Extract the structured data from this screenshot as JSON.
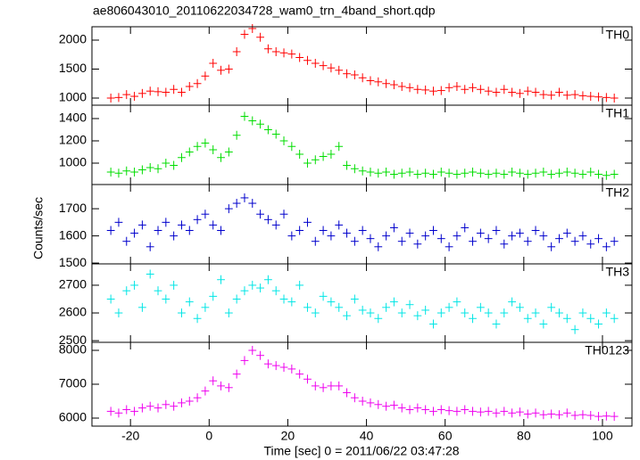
{
  "chart_data": {
    "type": "line",
    "title": "ae806043010_20110622034728_wam0_trn_4band_short.qdp",
    "xlabel": "Time [sec] 0 = 2011/06/22 03:47:28",
    "ylabel": "Counts/sec",
    "xlim": [
      -29.8,
      107.5
    ],
    "xticks": [
      -20,
      0,
      20,
      40,
      60,
      80,
      100
    ],
    "x": [
      -25,
      -23,
      -21,
      -19,
      -17,
      -15,
      -13,
      -11,
      -9,
      -7,
      -5,
      -3,
      -1,
      1,
      3,
      5,
      7,
      9,
      11,
      13,
      15,
      17,
      19,
      21,
      23,
      25,
      27,
      29,
      31,
      33,
      35,
      37,
      39,
      41,
      43,
      45,
      47,
      49,
      51,
      53,
      55,
      57,
      59,
      61,
      63,
      65,
      67,
      69,
      71,
      73,
      75,
      77,
      79,
      81,
      83,
      85,
      87,
      89,
      91,
      93,
      95,
      97,
      99,
      101,
      103
    ],
    "series": [
      {
        "name": "TH0",
        "color": "#ff0000",
        "ylim": [
          877,
          2231
        ],
        "yticks": [
          1000,
          1500,
          2000
        ],
        "values": [
          1000,
          1010,
          1060,
          1030,
          1080,
          1120,
          1110,
          1100,
          1150,
          1100,
          1200,
          1250,
          1380,
          1600,
          1480,
          1500,
          1800,
          2100,
          2200,
          2050,
          1850,
          1800,
          1780,
          1760,
          1700,
          1650,
          1600,
          1560,
          1520,
          1480,
          1420,
          1400,
          1350,
          1300,
          1280,
          1250,
          1230,
          1200,
          1180,
          1150,
          1140,
          1120,
          1130,
          1180,
          1200,
          1150,
          1180,
          1150,
          1120,
          1100,
          1150,
          1100,
          1080,
          1120,
          1100,
          1060,
          1050,
          1100,
          1050,
          1060,
          1040,
          1030,
          1020,
          1010,
          1000
        ]
      },
      {
        "name": "TH1",
        "color": "#00dd00",
        "ylim": [
          808,
          1520
        ],
        "yticks": [
          1000,
          1200,
          1400
        ],
        "values": [
          920,
          910,
          930,
          920,
          940,
          960,
          950,
          1000,
          980,
          1050,
          1100,
          1150,
          1180,
          1120,
          1050,
          1100,
          1250,
          1420,
          1380,
          1350,
          1300,
          1260,
          1200,
          1150,
          1080,
          1000,
          1030,
          1060,
          1080,
          1150,
          980,
          950,
          930,
          920,
          910,
          920,
          900,
          910,
          920,
          900,
          910,
          900,
          920,
          910,
          900,
          910,
          920,
          910,
          900,
          910,
          900,
          920,
          910,
          900,
          910,
          920,
          900,
          910,
          920,
          910,
          900,
          920,
          900,
          890,
          900
        ]
      },
      {
        "name": "TH2",
        "color": "#0000cc",
        "ylim": [
          1497,
          1789
        ],
        "yticks": [
          1500,
          1600,
          1700
        ],
        "values": [
          1620,
          1650,
          1580,
          1610,
          1640,
          1560,
          1620,
          1650,
          1600,
          1640,
          1620,
          1660,
          1680,
          1640,
          1620,
          1700,
          1720,
          1740,
          1720,
          1680,
          1660,
          1640,
          1680,
          1600,
          1620,
          1650,
          1580,
          1620,
          1600,
          1640,
          1610,
          1580,
          1620,
          1590,
          1560,
          1600,
          1630,
          1580,
          1610,
          1570,
          1600,
          1620,
          1590,
          1560,
          1600,
          1630,
          1580,
          1610,
          1590,
          1620,
          1570,
          1600,
          1610,
          1580,
          1620,
          1600,
          1560,
          1590,
          1610,
          1580,
          1600,
          1570,
          1590,
          1560,
          1580
        ]
      },
      {
        "name": "TH3",
        "color": "#00e5e5",
        "ylim": [
          2494,
          2777
        ],
        "yticks": [
          2500,
          2600,
          2700
        ],
        "values": [
          2650,
          2600,
          2680,
          2700,
          2620,
          2740,
          2680,
          2650,
          2700,
          2600,
          2640,
          2580,
          2620,
          2660,
          2720,
          2600,
          2650,
          2680,
          2700,
          2690,
          2720,
          2680,
          2650,
          2640,
          2700,
          2620,
          2600,
          2660,
          2640,
          2620,
          2590,
          2650,
          2610,
          2600,
          2580,
          2620,
          2640,
          2600,
          2630,
          2590,
          2610,
          2560,
          2600,
          2620,
          2640,
          2600,
          2580,
          2620,
          2600,
          2560,
          2600,
          2640,
          2620,
          2580,
          2600,
          2560,
          2620,
          2600,
          2580,
          2540,
          2600,
          2580,
          2560,
          2600,
          2580
        ]
      },
      {
        "name": "TH0123",
        "color": "#ee00ee",
        "ylim": [
          5763,
          8237
        ],
        "yticks": [
          6000,
          7000,
          8000
        ],
        "values": [
          6200,
          6150,
          6250,
          6200,
          6300,
          6350,
          6300,
          6400,
          6350,
          6450,
          6500,
          6600,
          6800,
          7100,
          6950,
          6900,
          7300,
          7700,
          8000,
          7850,
          7600,
          7550,
          7500,
          7450,
          7300,
          7150,
          6950,
          6900,
          6950,
          6950,
          6750,
          6600,
          6500,
          6450,
          6400,
          6350,
          6380,
          6300,
          6250,
          6300,
          6250,
          6200,
          6250,
          6220,
          6200,
          6250,
          6200,
          6180,
          6200,
          6150,
          6200,
          6150,
          6180,
          6120,
          6150,
          6100,
          6120,
          6100,
          6150,
          6080,
          6100,
          6080,
          6050,
          6060,
          6050
        ]
      }
    ]
  }
}
